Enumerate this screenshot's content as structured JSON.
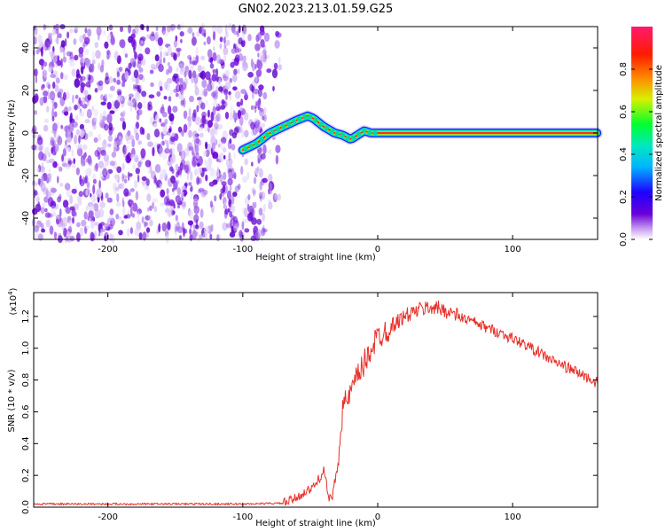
{
  "title": "GN02.2023.213.01.59.G25",
  "chart_data": [
    {
      "type": "heatmap",
      "xlabel": "Height of straight line (km)",
      "ylabel": "Frequency (Hz)",
      "xlim": [
        -255,
        163
      ],
      "ylim": [
        -50,
        50
      ],
      "xticks": [
        -200,
        -100,
        0,
        100
      ],
      "yticks": [
        -40,
        -20,
        0,
        20,
        40
      ],
      "noise_region_x": [
        -255,
        -83
      ],
      "track": {
        "x": [
          -100,
          -90,
          -80,
          -70,
          -60,
          -52,
          -48,
          -40,
          -32,
          -26,
          -20,
          -15,
          -10,
          -5,
          0,
          163
        ],
        "y": [
          -8,
          -5,
          0,
          3,
          6,
          8,
          7,
          3,
          0,
          -1,
          -3,
          -1,
          1,
          0,
          0,
          0
        ]
      },
      "colorbar": {
        "label": "Normalized spectral amplitude",
        "range": [
          0.0,
          1.0
        ],
        "ticks": [
          0.0,
          0.2,
          0.4,
          0.6,
          0.8
        ]
      }
    },
    {
      "type": "line",
      "xlabel": "Height of straight line (km)",
      "ylabel": "SNR (10 * v/v)",
      "scale_note": "(x10",
      "scale_exp": "4",
      "scale_close": ")",
      "xlim": [
        -255,
        163
      ],
      "ylim": [
        0.0,
        1.35
      ],
      "xticks": [
        -200,
        -100,
        0,
        100
      ],
      "yticks": [
        0.0,
        0.2,
        0.4,
        0.6,
        0.8,
        1.0,
        1.2
      ],
      "color": "#e8302a",
      "series": [
        {
          "x": [
            -255,
            -200,
            -150,
            -100,
            -70,
            -62,
            -55,
            -48,
            -42,
            -40,
            -38,
            -36,
            -34,
            -30,
            -28,
            -26,
            -22,
            -18,
            -14,
            -10,
            -5,
            0,
            10,
            20,
            30,
            40,
            50,
            60,
            70,
            80,
            90,
            100,
            110,
            120,
            130,
            140,
            150,
            163
          ],
          "y": [
            0.02,
            0.02,
            0.02,
            0.02,
            0.025,
            0.05,
            0.09,
            0.12,
            0.2,
            0.25,
            0.14,
            0.05,
            0.05,
            0.25,
            0.45,
            0.62,
            0.68,
            0.75,
            0.84,
            0.9,
            1.0,
            1.07,
            1.14,
            1.2,
            1.24,
            1.26,
            1.24,
            1.2,
            1.17,
            1.13,
            1.1,
            1.06,
            1.02,
            0.97,
            0.92,
            0.88,
            0.84,
            0.78
          ]
        }
      ]
    }
  ]
}
